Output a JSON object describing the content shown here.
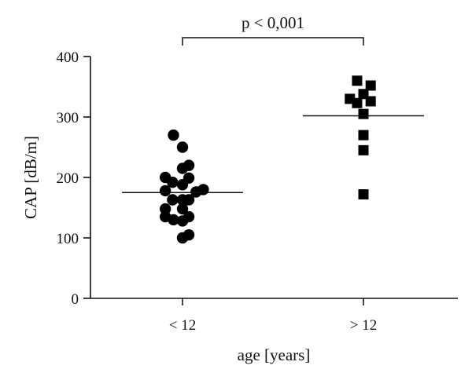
{
  "chart_data": {
    "type": "scatter",
    "title": "",
    "xlabel": "age [years]",
    "ylabel": "CAP [dB/m]",
    "ylim": [
      0,
      400
    ],
    "yticks": [
      0,
      100,
      200,
      300,
      400
    ],
    "grid": false,
    "categories": [
      "< 12",
      "> 12"
    ],
    "series": [
      {
        "category": "< 12",
        "marker": "circle",
        "color": "#000000",
        "mean": 175,
        "points": [
          {
            "x": -0.1,
            "y": 270
          },
          {
            "x": 0.0,
            "y": 250
          },
          {
            "x": 0.07,
            "y": 220
          },
          {
            "x": 0.0,
            "y": 215
          },
          {
            "x": -0.19,
            "y": 200
          },
          {
            "x": 0.07,
            "y": 199
          },
          {
            "x": -0.11,
            "y": 192
          },
          {
            "x": 0.0,
            "y": 188
          },
          {
            "x": -0.19,
            "y": 178
          },
          {
            "x": 0.23,
            "y": 180
          },
          {
            "x": 0.15,
            "y": 176
          },
          {
            "x": -0.11,
            "y": 163
          },
          {
            "x": 0.0,
            "y": 163
          },
          {
            "x": 0.07,
            "y": 163
          },
          {
            "x": -0.19,
            "y": 148
          },
          {
            "x": 0.0,
            "y": 148
          },
          {
            "x": -0.19,
            "y": 135
          },
          {
            "x": -0.1,
            "y": 130
          },
          {
            "x": 0.0,
            "y": 128
          },
          {
            "x": 0.07,
            "y": 135
          },
          {
            "x": 0.07,
            "y": 105
          },
          {
            "x": 0.0,
            "y": 100
          }
        ]
      },
      {
        "category": "> 12",
        "marker": "square",
        "color": "#000000",
        "mean": 302,
        "points": [
          {
            "x": -0.07,
            "y": 360
          },
          {
            "x": 0.08,
            "y": 352
          },
          {
            "x": 0.0,
            "y": 338
          },
          {
            "x": -0.15,
            "y": 330
          },
          {
            "x": -0.07,
            "y": 323
          },
          {
            "x": 0.08,
            "y": 326
          },
          {
            "x": 0.0,
            "y": 305
          },
          {
            "x": 0.0,
            "y": 270
          },
          {
            "x": 0.0,
            "y": 245
          },
          {
            "x": 0.0,
            "y": 172
          }
        ]
      }
    ],
    "annotations": [
      {
        "type": "bracket",
        "from": "< 12",
        "to": "> 12",
        "text": "p < 0,001"
      }
    ]
  }
}
